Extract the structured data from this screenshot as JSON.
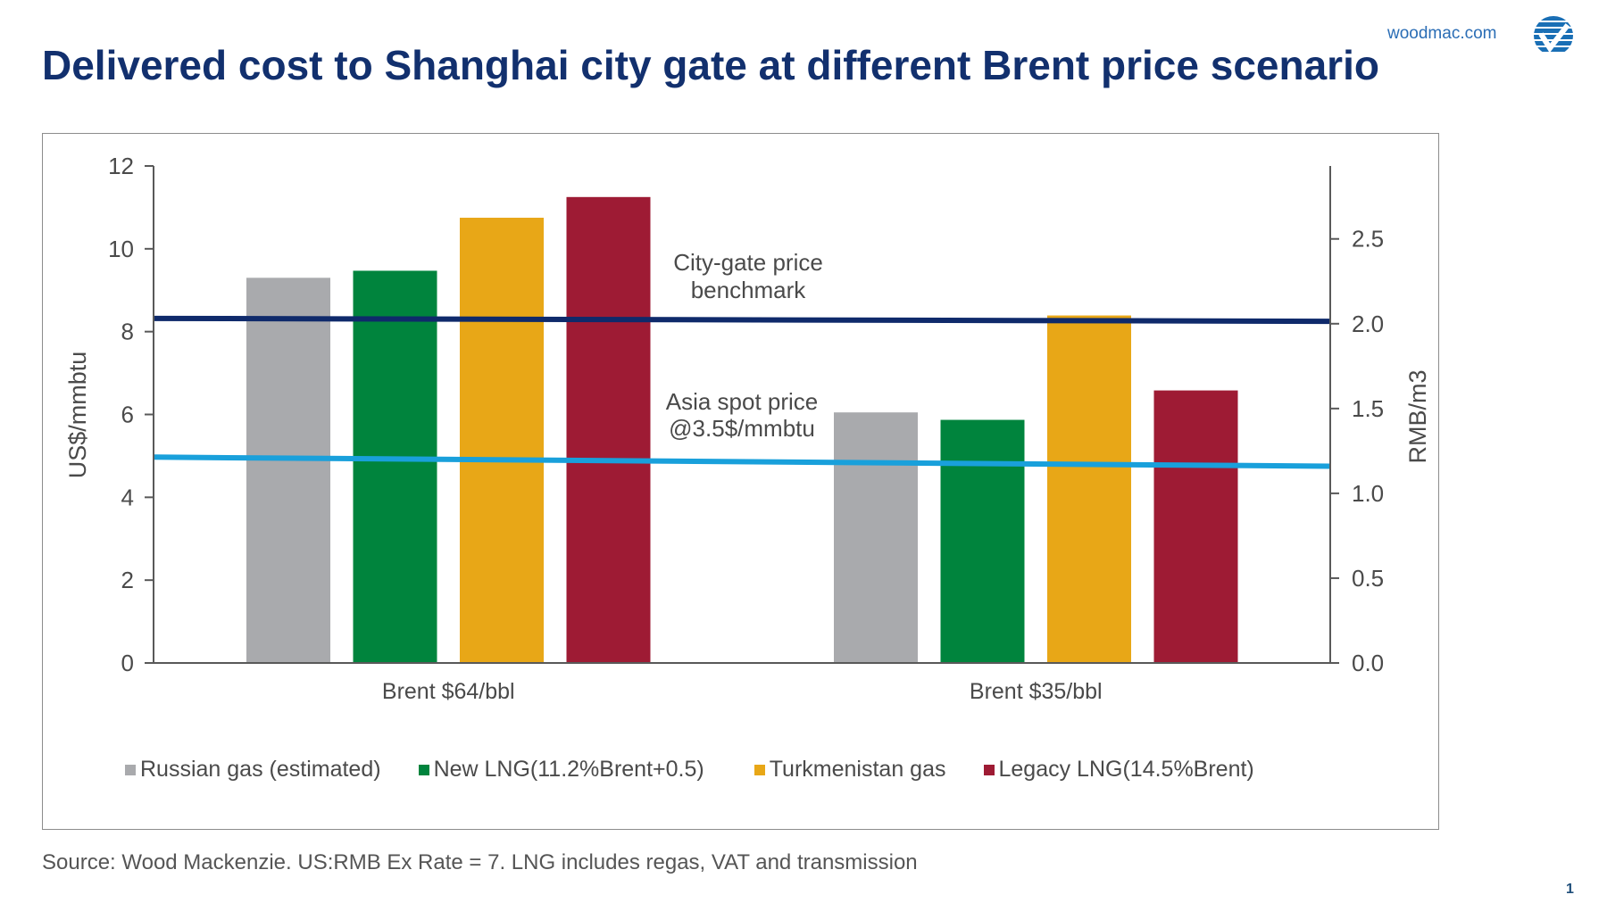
{
  "header": {
    "title": "Delivered cost to Shanghai city gate at different Brent price scenario",
    "site": "woodmac.com",
    "logo_icon": "woodmac-check-logo-icon"
  },
  "footer": {
    "source": "Source: Wood Mackenzie. US:RMB Ex Rate = 7. LNG includes regas, VAT and transmission",
    "page_number": "1"
  },
  "colors": {
    "title": "#12306e",
    "russian": "#a9aaad",
    "new_lng": "#00843d",
    "turkmenistan": "#e8a717",
    "legacy_lng": "#9e1b34",
    "city_gate_line": "#0f2a6b",
    "asia_spot_line": "#19a0db"
  },
  "chart_data": {
    "type": "bar",
    "title": "Delivered cost to Shanghai city gate at different Brent price scenario",
    "categories": [
      "Brent $64/bbl",
      "Brent $35/bbl"
    ],
    "series": [
      {
        "name": "Russian gas (estimated)",
        "color": "#a9aaad",
        "values": [
          9.3,
          6.05
        ]
      },
      {
        "name": "New LNG(11.2%Brent+0.5)",
        "color": "#00843d",
        "values": [
          9.47,
          5.87
        ]
      },
      {
        "name": "Turkmenistan gas",
        "color": "#e8a717",
        "values": [
          10.75,
          8.39
        ]
      },
      {
        "name": "Legacy LNG(14.5%Brent)",
        "color": "#9e1b34",
        "values": [
          11.25,
          6.58
        ]
      }
    ],
    "reference_lines": [
      {
        "name": "City-gate price benchmark",
        "label_lines": [
          "City-gate price",
          "benchmark"
        ],
        "color": "#0f2a6b",
        "start": 8.32,
        "end": 8.25
      },
      {
        "name": "Asia spot price @3.5$/mmbtu",
        "label_lines": [
          "Asia spot price",
          "@3.5$/mmbtu"
        ],
        "color": "#19a0db",
        "start": 4.97,
        "end": 4.75
      }
    ],
    "ylabel": "US$/mmbtu",
    "ylim": [
      0,
      12
    ],
    "yticks": [
      "0",
      "2",
      "4",
      "6",
      "8",
      "10",
      "12"
    ],
    "y2label": "RMB/m3",
    "y2lim": [
      0,
      2.93
    ],
    "y2ticks": [
      "0.0",
      "0.5",
      "1.0",
      "1.5",
      "2.0",
      "2.5"
    ],
    "grid": false,
    "legend": "bottom"
  }
}
